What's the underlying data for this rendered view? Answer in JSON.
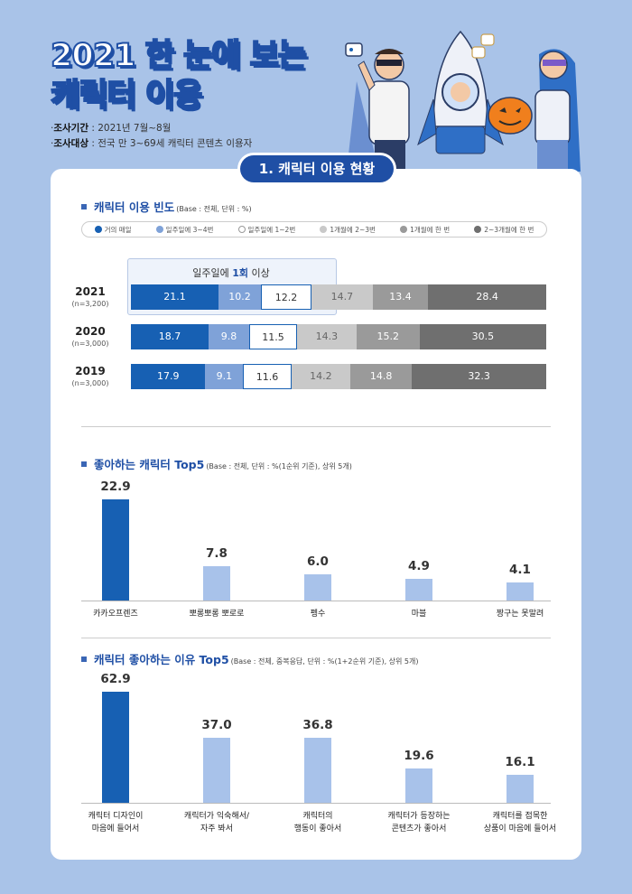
{
  "title": [
    "2021 한 눈에 보는",
    "캐릭터 이용"
  ],
  "meta": {
    "period_label": "조사기간",
    "period_value": "2021년 7월~8월",
    "target_label": "조사대상",
    "target_value": "전국 만 3~69세 캐릭터 콘텐츠 이용자"
  },
  "section_pill": "1. 캐릭터 이용 현황",
  "colors": {
    "dark_blue": "#1760b3",
    "mid_blue": "#7fa2d8",
    "light_blue": "#a8c2ea",
    "white": "#ffffff",
    "light_gray": "#c9c9c9",
    "mid_gray": "#9a9a9a",
    "dark_gray": "#6f6f6f",
    "accent": "#1f4fa5"
  },
  "chart_data": [
    {
      "type": "bar",
      "orientation": "horizontal-stacked",
      "title": "캐릭터 이용 빈도",
      "note": "(Base : 전체, 단위 : %)",
      "highlight": {
        "pre": "일주일에 ",
        "bold": "1회",
        "post": " 이상"
      },
      "series_names": [
        "거의 매일",
        "일주일에 3~4번",
        "일주일에 1~2번",
        "1개월에 2~3번",
        "1개월에 한 번",
        "2~3개월에 한 번"
      ],
      "rows": [
        {
          "year": "2021",
          "n": "(n=3,200)",
          "values": [
            21.1,
            10.2,
            12.2,
            14.7,
            13.4,
            28.4
          ]
        },
        {
          "year": "2020",
          "n": "(n=3,000)",
          "values": [
            18.7,
            9.8,
            11.5,
            14.3,
            15.2,
            30.5
          ]
        },
        {
          "year": "2019",
          "n": "(n=3,000)",
          "values": [
            17.9,
            9.1,
            11.6,
            14.2,
            14.8,
            32.3
          ]
        }
      ]
    },
    {
      "type": "bar",
      "title": "좋아하는 캐릭터 Top5",
      "note": "(Base : 전체, 단위 : %(1순위 기준), 상위 5개)",
      "categories": [
        [
          "카카오프렌즈"
        ],
        [
          "뽀롱뽀롱 뽀로로"
        ],
        [
          "펭수"
        ],
        [
          "마블"
        ],
        [
          "짱구는 못말려"
        ]
      ],
      "values": [
        22.9,
        7.8,
        6.0,
        4.9,
        4.1
      ],
      "labels": [
        "22.9",
        "7.8",
        "6.0",
        "4.9",
        "4.1"
      ]
    },
    {
      "type": "bar",
      "title": "캐릭터 좋아하는 이유 Top5",
      "note": "(Base : 전체, 중복응답, 단위 : %(1+2순위 기준), 상위 5개)",
      "categories": [
        [
          "캐릭터 디자인이",
          "마음에 들어서"
        ],
        [
          "캐릭터가 익숙해서/",
          "자주 봐서"
        ],
        [
          "캐릭터의",
          "행동이 좋아서"
        ],
        [
          "캐릭터가 등장하는",
          "콘텐츠가 좋아서"
        ],
        [
          "캐릭터를 접목한",
          "상품이 마음에 들어서"
        ]
      ],
      "values": [
        62.9,
        37.0,
        36.8,
        19.6,
        16.1
      ],
      "labels": [
        "62.9",
        "37.0",
        "36.8",
        "19.6",
        "16.1"
      ]
    }
  ]
}
